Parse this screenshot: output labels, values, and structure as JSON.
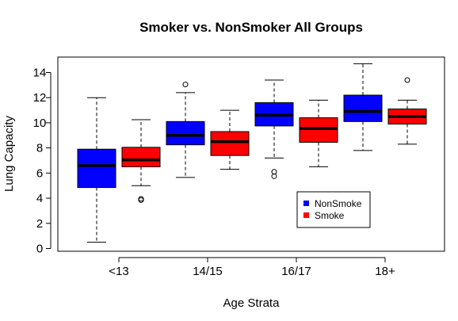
{
  "chart_data": {
    "type": "box",
    "title": "Smoker vs. NonSmoker All Groups",
    "xlabel": "Age Strata",
    "ylabel": "Lung Capacity",
    "categories": [
      "<13",
      "14/15",
      "16/17",
      "18+"
    ],
    "ylim": [
      0,
      15
    ],
    "yticks": [
      0,
      2,
      4,
      6,
      8,
      10,
      12,
      14
    ],
    "grid": false,
    "legend_position": "bottom-right",
    "series": [
      {
        "name": "NonSmoke",
        "color": "#0000ff",
        "boxes": [
          {
            "min": 0.5,
            "q1": 4.85,
            "median": 6.6,
            "q3": 7.9,
            "max": 12.0,
            "outliers": []
          },
          {
            "min": 5.65,
            "q1": 8.25,
            "median": 9.0,
            "q3": 10.1,
            "max": 12.4,
            "outliers": [
              13.05
            ]
          },
          {
            "min": 7.2,
            "q1": 9.75,
            "median": 10.6,
            "q3": 11.6,
            "max": 13.4,
            "outliers": [
              6.1,
              5.75
            ]
          },
          {
            "min": 7.8,
            "q1": 10.1,
            "median": 10.9,
            "q3": 12.2,
            "max": 14.7,
            "outliers": []
          }
        ]
      },
      {
        "name": "Smoke",
        "color": "#ff0000",
        "boxes": [
          {
            "min": 5.0,
            "q1": 6.5,
            "median": 7.05,
            "q3": 8.05,
            "max": 10.25,
            "outliers": [
              3.95,
              3.85
            ]
          },
          {
            "min": 6.3,
            "q1": 7.4,
            "median": 8.5,
            "q3": 9.3,
            "max": 11.0,
            "outliers": []
          },
          {
            "min": 6.5,
            "q1": 8.45,
            "median": 9.55,
            "q3": 10.4,
            "max": 11.8,
            "outliers": []
          },
          {
            "min": 8.3,
            "q1": 9.9,
            "median": 10.5,
            "q3": 11.1,
            "max": 11.8,
            "outliers": [
              13.4
            ]
          }
        ]
      }
    ]
  }
}
